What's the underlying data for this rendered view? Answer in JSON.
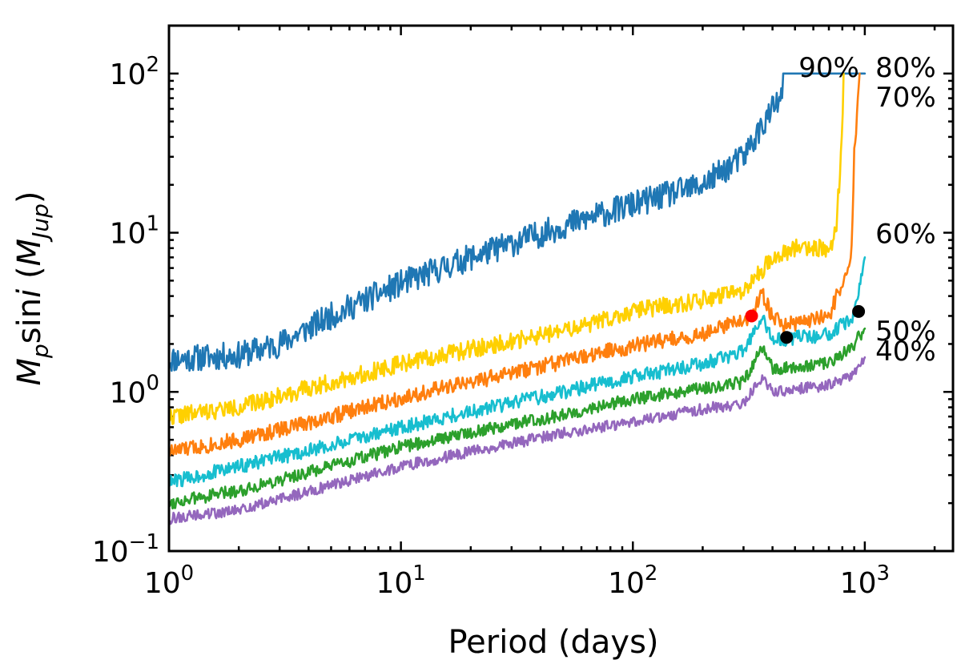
{
  "chart_data": {
    "type": "line",
    "title": "",
    "xlabel": "Period (days)",
    "ylabel_main": "M",
    "ylabel_sub": "p",
    "ylabel_mid": "sin",
    "ylabel_i": "i",
    "ylabel_paren_open": " (",
    "ylabel_unit": "M",
    "ylabel_unit_sub": "Jup",
    "ylabel_paren_close": ")",
    "x_scale": "log",
    "y_scale": "log",
    "xlim": [
      1,
      2400
    ],
    "ylim": [
      0.1,
      200
    ],
    "x_tick_labels": [
      {
        "base": "10",
        "exp": "0",
        "value": 1
      },
      {
        "base": "10",
        "exp": "1",
        "value": 10
      },
      {
        "base": "10",
        "exp": "2",
        "value": 100
      },
      {
        "base": "10",
        "exp": "3",
        "value": 1000
      }
    ],
    "y_tick_labels": [
      {
        "base": "10",
        "exp": "−1",
        "value": 0.1
      },
      {
        "base": "10",
        "exp": "0",
        "value": 1
      },
      {
        "base": "10",
        "exp": "1",
        "value": 10
      },
      {
        "base": "10",
        "exp": "2",
        "value": 100
      }
    ],
    "series": [
      {
        "name": "90%",
        "color": "#1f77b4",
        "noise": 0.085,
        "seed": 11,
        "anchors": [
          [
            1,
            1.6
          ],
          [
            2,
            1.7
          ],
          [
            3,
            2.0
          ],
          [
            5,
            3.0
          ],
          [
            10,
            4.8
          ],
          [
            20,
            7.0
          ],
          [
            50,
            11
          ],
          [
            100,
            15
          ],
          [
            200,
            20
          ],
          [
            300,
            30
          ],
          [
            400,
            60
          ],
          [
            440,
            70
          ]
        ],
        "tail": [
          [
            445,
            100
          ],
          [
            1000,
            100
          ]
        ]
      },
      {
        "name": "80%",
        "color": "#ffd000",
        "noise": 0.055,
        "seed": 22,
        "anchors": [
          [
            1,
            0.7
          ],
          [
            2,
            0.8
          ],
          [
            5,
            1.15
          ],
          [
            10,
            1.5
          ],
          [
            20,
            1.85
          ],
          [
            50,
            2.4
          ],
          [
            100,
            3.2
          ],
          [
            200,
            3.8
          ],
          [
            300,
            4.2
          ],
          [
            400,
            7.0
          ],
          [
            500,
            8.0
          ],
          [
            700,
            8.0
          ],
          [
            750,
            10
          ],
          [
            800,
            40
          ],
          [
            810,
            100
          ]
        ],
        "tail": []
      },
      {
        "name": "70%",
        "color": "#ff7f0e",
        "noise": 0.05,
        "seed": 33,
        "anchors": [
          [
            1,
            0.42
          ],
          [
            2,
            0.5
          ],
          [
            5,
            0.7
          ],
          [
            10,
            0.92
          ],
          [
            20,
            1.15
          ],
          [
            50,
            1.55
          ],
          [
            100,
            1.95
          ],
          [
            200,
            2.3
          ],
          [
            320,
            2.9
          ],
          [
            360,
            4.2
          ],
          [
            400,
            3.0
          ],
          [
            450,
            2.6
          ],
          [
            700,
            3.0
          ],
          [
            850,
            6.0
          ],
          [
            880,
            8.0
          ],
          [
            900,
            30
          ],
          [
            950,
            100
          ]
        ],
        "tail": []
      },
      {
        "name": "60%",
        "color": "#17becf",
        "noise": 0.045,
        "seed": 44,
        "anchors": [
          [
            1,
            0.27
          ],
          [
            2,
            0.34
          ],
          [
            5,
            0.46
          ],
          [
            10,
            0.6
          ],
          [
            20,
            0.75
          ],
          [
            50,
            1.0
          ],
          [
            100,
            1.25
          ],
          [
            200,
            1.5
          ],
          [
            300,
            1.8
          ],
          [
            360,
            2.9
          ],
          [
            400,
            2.1
          ],
          [
            700,
            2.3
          ],
          [
            900,
            3.0
          ],
          [
            1000,
            7.0
          ]
        ],
        "tail": []
      },
      {
        "name": "50%",
        "color": "#2ca02c",
        "noise": 0.04,
        "seed": 55,
        "anchors": [
          [
            1,
            0.2
          ],
          [
            2,
            0.24
          ],
          [
            5,
            0.34
          ],
          [
            10,
            0.45
          ],
          [
            20,
            0.56
          ],
          [
            50,
            0.72
          ],
          [
            100,
            0.9
          ],
          [
            200,
            1.05
          ],
          [
            300,
            1.15
          ],
          [
            360,
            1.9
          ],
          [
            400,
            1.4
          ],
          [
            700,
            1.5
          ],
          [
            900,
            2.0
          ],
          [
            1000,
            2.5
          ]
        ],
        "tail": []
      },
      {
        "name": "40%",
        "color": "#9467bd",
        "noise": 0.035,
        "seed": 66,
        "anchors": [
          [
            1,
            0.16
          ],
          [
            2,
            0.18
          ],
          [
            5,
            0.26
          ],
          [
            10,
            0.34
          ],
          [
            20,
            0.42
          ],
          [
            50,
            0.55
          ],
          [
            100,
            0.65
          ],
          [
            200,
            0.78
          ],
          [
            300,
            0.85
          ],
          [
            360,
            1.2
          ],
          [
            400,
            1.0
          ],
          [
            700,
            1.1
          ],
          [
            900,
            1.3
          ],
          [
            1000,
            1.65
          ]
        ],
        "tail": []
      }
    ],
    "annotations": [
      {
        "text": "90%",
        "color": "#1f77b4",
        "x": 700,
        "y": 100
      },
      {
        "text": "80%",
        "color": "#ffd000",
        "x": 1500,
        "y": 100
      },
      {
        "text": "70%",
        "color": "#ff7f0e",
        "x": 1500,
        "y": 65
      },
      {
        "text": "60%",
        "color": "#17becf",
        "x": 1500,
        "y": 9.0
      },
      {
        "text": "50%",
        "color": "#2ca02c",
        "x": 1500,
        "y": 2.2
      },
      {
        "text": "40%",
        "color": "#9467bd",
        "x": 1500,
        "y": 1.65
      }
    ],
    "points": [
      {
        "x": 325,
        "y": 3.0,
        "color": "#ff0000"
      },
      {
        "x": 460,
        "y": 2.2,
        "color": "#000000"
      },
      {
        "x": 940,
        "y": 3.2,
        "color": "#000000"
      }
    ]
  }
}
